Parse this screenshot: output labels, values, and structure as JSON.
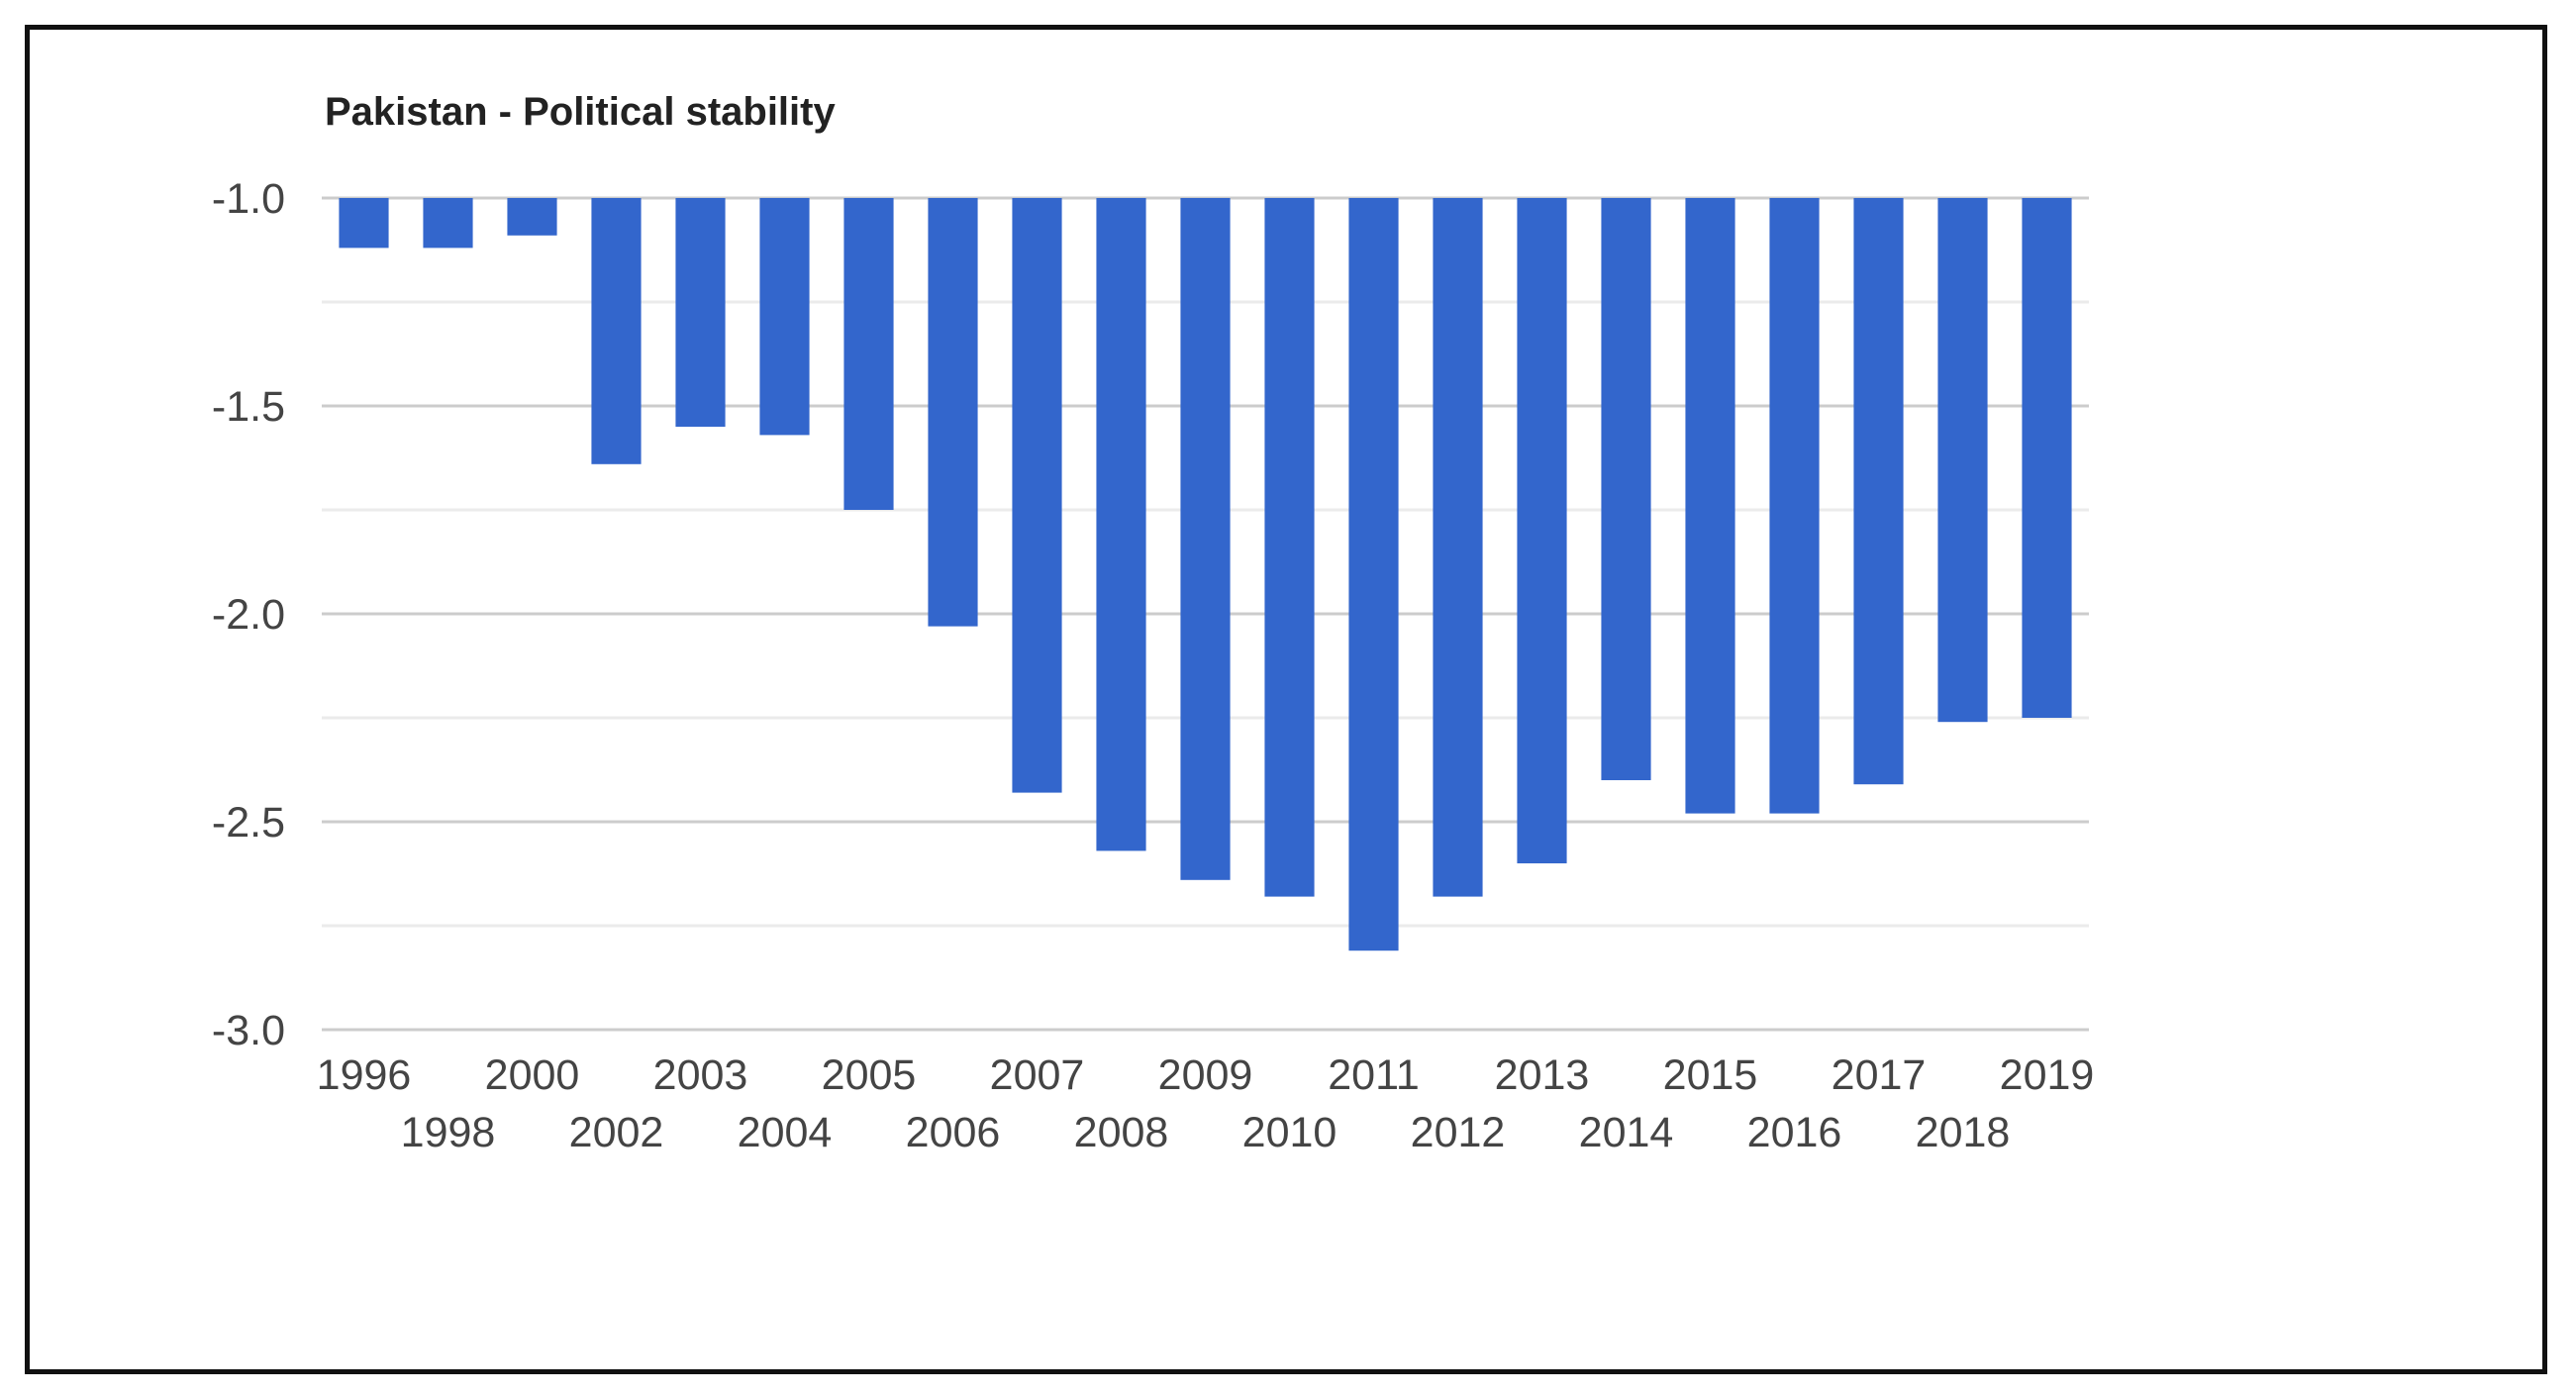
{
  "chart_data": {
    "type": "bar",
    "title": "Pakistan - Political stability",
    "xlabel": "",
    "ylabel": "",
    "baseline": -1.0,
    "ylim": [
      -3.0,
      -1.0
    ],
    "yticks": [
      -1.0,
      -1.5,
      -2.0,
      -2.5,
      -3.0
    ],
    "ytick_labels": [
      "-1.0",
      "-1.5",
      "-2.0",
      "-2.5",
      "-3.0"
    ],
    "grid": true,
    "color": "#3366cc",
    "categories": [
      "1996",
      "1998",
      "2000",
      "2002",
      "2003",
      "2004",
      "2005",
      "2006",
      "2007",
      "2008",
      "2009",
      "2010",
      "2011",
      "2012",
      "2013",
      "2014",
      "2015",
      "2016",
      "2017",
      "2018",
      "2019"
    ],
    "values": [
      -1.12,
      -1.12,
      -1.09,
      -1.64,
      -1.55,
      -1.57,
      -1.75,
      -2.03,
      -2.43,
      -2.57,
      -2.64,
      -2.68,
      -2.81,
      -2.68,
      -2.6,
      -2.4,
      -2.48,
      -2.48,
      -2.41,
      -2.26,
      -2.25
    ]
  }
}
